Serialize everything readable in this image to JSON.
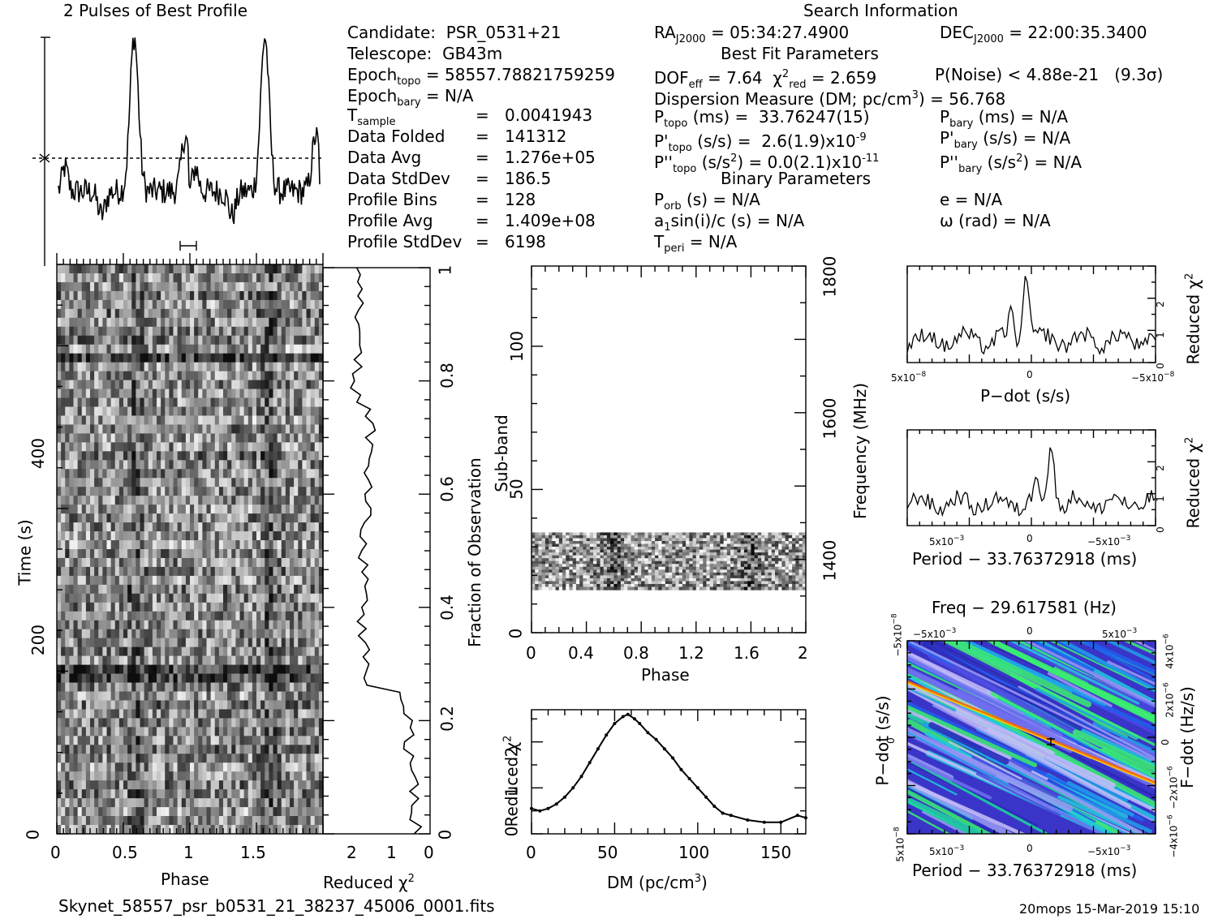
{
  "titles": {
    "profile": "2 Pulses of Best Profile",
    "search_info": "Search Information",
    "best_fit": "Best Fit Parameters",
    "binary": "Binary Parameters"
  },
  "info_left": [
    {
      "label": "Candidate:",
      "value": "PSR_0531+21"
    },
    {
      "label": "Telescope:",
      "value": "GB43m"
    },
    {
      "label": "Epoch",
      "sub": "topo",
      "value": "= 58557.78821759259"
    },
    {
      "label": "Epoch",
      "sub": "bary",
      "value": "= N/A"
    },
    {
      "label": "T",
      "sub": "sample",
      "value": "0.0041943"
    },
    {
      "label": "Data Folded",
      "value": "141312"
    },
    {
      "label": "Data Avg",
      "value": "1.276e+05"
    },
    {
      "label": "Data StdDev",
      "value": "186.5"
    },
    {
      "label": "Profile Bins",
      "value": "128"
    },
    {
      "label": "Profile Avg",
      "value": "1.409e+08"
    },
    {
      "label": "Profile StdDev",
      "value": "6198"
    }
  ],
  "search": {
    "ra": "RA",
    "ra_sub": "J2000",
    "ra_value": "= 05:34:27.4900",
    "dec": "DEC",
    "dec_sub": "J2000",
    "dec_value": "= 22:00:35.3400"
  },
  "best_fit_lines": {
    "dof": "DOF",
    "dof_sub": "eff",
    "dof_value": "= 7.64",
    "chi_value": "= 2.659",
    "chi_sub": "red",
    "pnoise": "P(Noise) < 4.88e-21   (9.3σ)",
    "dm": "Dispersion Measure (DM; pc/cm",
    "dm_value": ") = 56.768",
    "ptopo": "P",
    "ptopo_sub": "topo",
    "ptopo_value": "(ms) =  33.76247(15)",
    "pbary_value": "(ms) = N/A",
    "pdtopo_value": "(s/s) =  2.6(1.9)x10",
    "pdtopo_exp": "-9",
    "pdbary_value": "(s/s) = N/A",
    "pddtopo_value": "(s/s",
    "pddtopo_value2": ") = 0.0(2.1)x10",
    "pddtopo_exp": "-11",
    "pddbary_value": ") = N/A",
    "porb": "P",
    "porb_sub": "orb",
    "porb_value": "(s) = N/A",
    "e_value": "e = N/A",
    "a1_value": "sin(i)/c (s) = N/A",
    "omega_value": "ω (rad) = N/A",
    "tperi": "T",
    "tperi_sub": "peri",
    "tperi_value": "= N/A"
  },
  "footer": {
    "filename": "Skynet_58557_psr_b0531_21_38237_45006_0001.fits",
    "stamp": "20mops 15-Mar-2019 15:10"
  },
  "chart_data": [
    {
      "type": "line",
      "id": "profile",
      "title": "2 Pulses of Best Profile",
      "x_range": [
        0,
        2
      ],
      "peaks_at_phase": [
        0.58,
        1.58
      ],
      "secondary_peaks": [
        0.95,
        1.95
      ]
    },
    {
      "type": "heatmap",
      "id": "time-phase",
      "xlabel": "Phase",
      "ylabel": "Time (s)",
      "xlim": [
        0,
        2
      ],
      "ylim": [
        0,
        640
      ],
      "x_ticks": [
        "0",
        "0.5",
        "1",
        "1.5"
      ],
      "y_ticks": [
        "0",
        "200",
        "400"
      ],
      "colormap": "grayscale"
    },
    {
      "type": "line",
      "id": "reduced-chi2-vs-fraction",
      "xlabel": "Reduced χ",
      "x_ticks": [
        "2",
        "1",
        "0"
      ],
      "y2label": "Fraction of Observation",
      "y2_ticks": [
        "0",
        "0.2",
        "0.4",
        "0.6",
        "0.8",
        "1"
      ]
    },
    {
      "type": "heatmap",
      "id": "subband-phase",
      "xlabel": "Phase",
      "ylabel": "Sub-band",
      "y2label": "Frequency (MHz)",
      "x_ticks": [
        "0",
        "0.4",
        "0.8",
        "1.2",
        "1.6",
        "2"
      ],
      "y_ticks": [
        "0",
        "50",
        "100"
      ],
      "y2_ticks": [
        "1400",
        "1600",
        "1800"
      ],
      "filled_subbands": [
        15,
        35
      ]
    },
    {
      "type": "line",
      "id": "dm-curve",
      "xlabel": "DM (pc/cm",
      "ylabel": "Reduced χ",
      "xlim": [
        0,
        165
      ],
      "ylim": [
        0,
        2.7
      ],
      "x_ticks": [
        "0",
        "50",
        "100",
        "150"
      ],
      "y_ticks": [
        "0",
        "1",
        "2"
      ],
      "x": [
        0,
        5,
        10,
        15,
        20,
        25,
        30,
        35,
        40,
        45,
        50,
        55,
        58,
        62,
        65,
        70,
        75,
        80,
        85,
        90,
        95,
        100,
        105,
        110,
        115,
        120,
        130,
        140,
        150,
        160,
        165
      ],
      "y": [
        0.55,
        0.5,
        0.55,
        0.65,
        0.8,
        1.0,
        1.25,
        1.55,
        1.85,
        2.15,
        2.4,
        2.55,
        2.6,
        2.5,
        2.4,
        2.2,
        2.05,
        1.85,
        1.65,
        1.4,
        1.2,
        1.0,
        0.8,
        0.6,
        0.45,
        0.4,
        0.3,
        0.25,
        0.25,
        0.4,
        0.35
      ]
    },
    {
      "type": "line",
      "id": "pdot-chi2",
      "xlabel": "P−dot (s/s)",
      "ylabel": "Reduced χ",
      "x_ticks": [
        "5x10",
        "0",
        "−5x10"
      ],
      "x_tick_exp": "−8",
      "y_ticks": [
        "0",
        "1",
        "2"
      ]
    },
    {
      "type": "line",
      "id": "period-chi2",
      "xlabel": "Period − 33.76372918 (ms)",
      "ylabel": "Reduced χ",
      "x_ticks": [
        "5x10",
        "0",
        "−5x10"
      ],
      "x_tick_exp": "−3",
      "y_ticks": [
        "0",
        "1",
        "2"
      ]
    },
    {
      "type": "heatmap",
      "id": "period-pdot",
      "title": "Freq − 29.617581 (Hz)",
      "xlabel": "Period − 33.76372918 (ms)",
      "ylabel": "P−dot (s/s)",
      "y2label": "F−dot (Hz/s)",
      "top_ticks": [
        "−5x10",
        "0",
        "5x10"
      ],
      "bottom_ticks": [
        "5x10",
        "0",
        "−5x10"
      ],
      "left_ticks": [
        "−5x10",
        "0",
        "5x10"
      ],
      "right_ticks": [
        "4x10",
        "2x10",
        "0",
        "−2x10",
        "−4x10"
      ],
      "colormap": "rainbow"
    }
  ]
}
